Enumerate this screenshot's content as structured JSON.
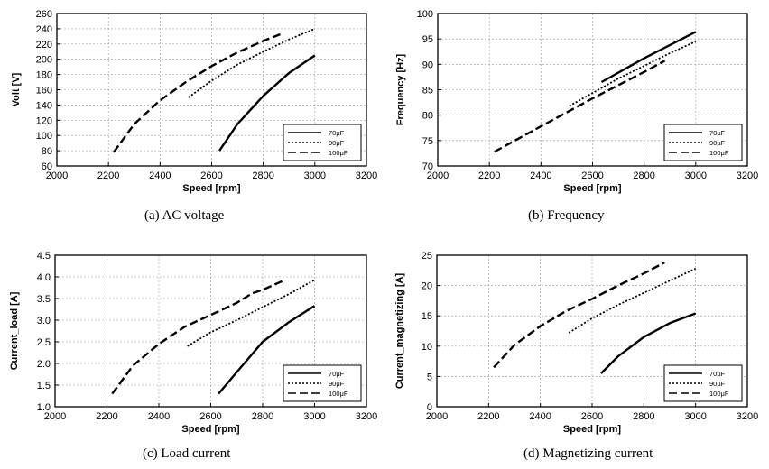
{
  "chart_data": [
    {
      "type": "line",
      "caption": "(a)  AC  voltage",
      "xlabel": "Speed [rpm]",
      "ylabel": "Volt [V]",
      "xlim": [
        2000,
        3200
      ],
      "ylim": [
        60,
        260
      ],
      "xticks": [
        2000,
        2200,
        2400,
        2600,
        2800,
        3000,
        3200
      ],
      "yticks": [
        60,
        80,
        100,
        120,
        140,
        160,
        180,
        200,
        220,
        240,
        260
      ],
      "grid": true,
      "legend_position": "bottom-right",
      "series": [
        {
          "name": "70μF",
          "style": "solid",
          "x": [
            2630,
            2700,
            2800,
            2900,
            3000
          ],
          "y": [
            80,
            115,
            152,
            182,
            205
          ]
        },
        {
          "name": "90μF",
          "style": "dotted",
          "x": [
            2510,
            2600,
            2700,
            2800,
            2900,
            3000
          ],
          "y": [
            150,
            172,
            193,
            210,
            226,
            240
          ]
        },
        {
          "name": "100μF",
          "style": "dashed",
          "x": [
            2220,
            2300,
            2400,
            2500,
            2600,
            2700,
            2800,
            2875
          ],
          "y": [
            78,
            115,
            146,
            170,
            191,
            209,
            224,
            234
          ]
        }
      ]
    },
    {
      "type": "line",
      "caption": "(b)  Frequency",
      "xlabel": "Speed [rpm]",
      "ylabel": "Frequency [Hz]",
      "xlim": [
        2000,
        3200
      ],
      "ylim": [
        70,
        100
      ],
      "xticks": [
        2000,
        2200,
        2400,
        2600,
        2800,
        3000,
        3200
      ],
      "yticks": [
        70,
        75,
        80,
        85,
        90,
        95,
        100
      ],
      "grid": true,
      "legend_position": "bottom-right",
      "series": [
        {
          "name": "70μF",
          "style": "solid",
          "x": [
            2635,
            2800,
            3000
          ],
          "y": [
            86.5,
            91.2,
            96.4
          ]
        },
        {
          "name": "90μF",
          "style": "dotted",
          "x": [
            2510,
            2700,
            2900,
            3000
          ],
          "y": [
            81.8,
            87.2,
            92.2,
            94.5
          ]
        },
        {
          "name": "100μF",
          "style": "dashed",
          "x": [
            2220,
            2400,
            2600,
            2800,
            2880
          ],
          "y": [
            72.8,
            77.8,
            83.3,
            88.5,
            90.7
          ]
        }
      ]
    },
    {
      "type": "line",
      "caption": "(c)  Load  current",
      "xlabel": "Speed [rpm]",
      "ylabel": "Current_load [A]",
      "xlim": [
        2000,
        3200
      ],
      "ylim": [
        1.0,
        4.5
      ],
      "xticks": [
        2000,
        2200,
        2400,
        2600,
        2800,
        3000,
        3200
      ],
      "yticks": [
        1.0,
        1.5,
        2.0,
        2.5,
        3.0,
        3.5,
        4.0,
        4.5
      ],
      "yticklabels": [
        "1.0",
        "1.5",
        "2.0",
        "2.5",
        "3.0",
        "3.5",
        "4.0",
        "4.5"
      ],
      "grid": true,
      "legend_position": "bottom-right",
      "series": [
        {
          "name": "70μF",
          "style": "solid",
          "x": [
            2630,
            2700,
            2800,
            2900,
            3000
          ],
          "y": [
            1.3,
            1.8,
            2.5,
            2.95,
            3.33
          ]
        },
        {
          "name": "90μF",
          "style": "dotted",
          "x": [
            2510,
            2600,
            2700,
            2800,
            2900,
            3000
          ],
          "y": [
            2.4,
            2.72,
            3.0,
            3.3,
            3.6,
            3.93
          ]
        },
        {
          "name": "100μF",
          "style": "dashed",
          "x": [
            2220,
            2300,
            2400,
            2500,
            2600,
            2700,
            2760,
            2800,
            2875
          ],
          "y": [
            1.3,
            1.95,
            2.45,
            2.85,
            3.12,
            3.4,
            3.62,
            3.7,
            3.9
          ]
        }
      ]
    },
    {
      "type": "line",
      "caption": "(d)  Magnetizing  current",
      "xlabel": "Speed [rpm]",
      "ylabel": "Current_magnetizing [A]",
      "xlim": [
        2000,
        3200
      ],
      "ylim": [
        0,
        25
      ],
      "xticks": [
        2000,
        2200,
        2400,
        2600,
        2800,
        3000,
        3200
      ],
      "yticks": [
        0,
        5,
        10,
        15,
        20,
        25
      ],
      "grid": true,
      "legend_position": "bottom-right",
      "series": [
        {
          "name": "70μF",
          "style": "solid",
          "x": [
            2635,
            2700,
            2800,
            2900,
            3000
          ],
          "y": [
            5.5,
            8.3,
            11.5,
            13.8,
            15.4
          ]
        },
        {
          "name": "90μF",
          "style": "dotted",
          "x": [
            2510,
            2600,
            2700,
            2800,
            2900,
            3000
          ],
          "y": [
            12.2,
            14.6,
            16.8,
            18.8,
            20.8,
            22.8
          ]
        },
        {
          "name": "100μF",
          "style": "dashed",
          "x": [
            2220,
            2300,
            2400,
            2500,
            2600,
            2700,
            2800,
            2880
          ],
          "y": [
            6.5,
            10.2,
            13.3,
            15.8,
            17.8,
            20.0,
            22.0,
            23.8
          ]
        }
      ]
    }
  ]
}
